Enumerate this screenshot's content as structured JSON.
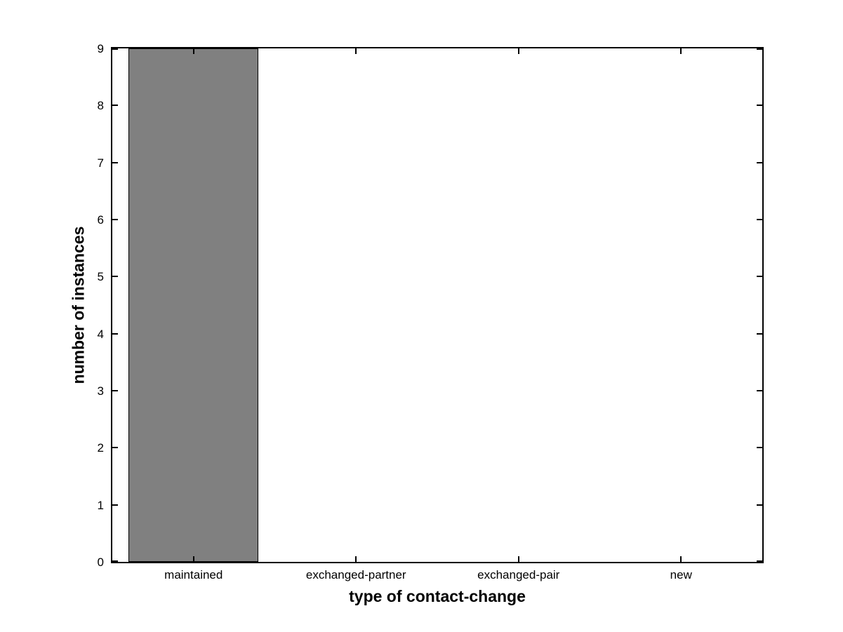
{
  "figure": {
    "background_color": "#ffffff",
    "axis_line_color": "#000000"
  },
  "chart_data": {
    "type": "bar",
    "categories": [
      "maintained",
      "exchanged-partner",
      "exchanged-pair",
      "new"
    ],
    "values": [
      9,
      0,
      0,
      0
    ],
    "title": "",
    "xlabel": "type of contact-change",
    "ylabel": "number of instances",
    "ylim": [
      0,
      9
    ],
    "yticks": [
      0,
      1,
      2,
      3,
      4,
      5,
      6,
      7,
      8,
      9
    ],
    "bar_color": "#808080",
    "bar_edge_color": "#000000",
    "bar_width_fraction": 0.8,
    "grid": false,
    "legend_position": "none",
    "box": true,
    "tick_direction": "in"
  }
}
